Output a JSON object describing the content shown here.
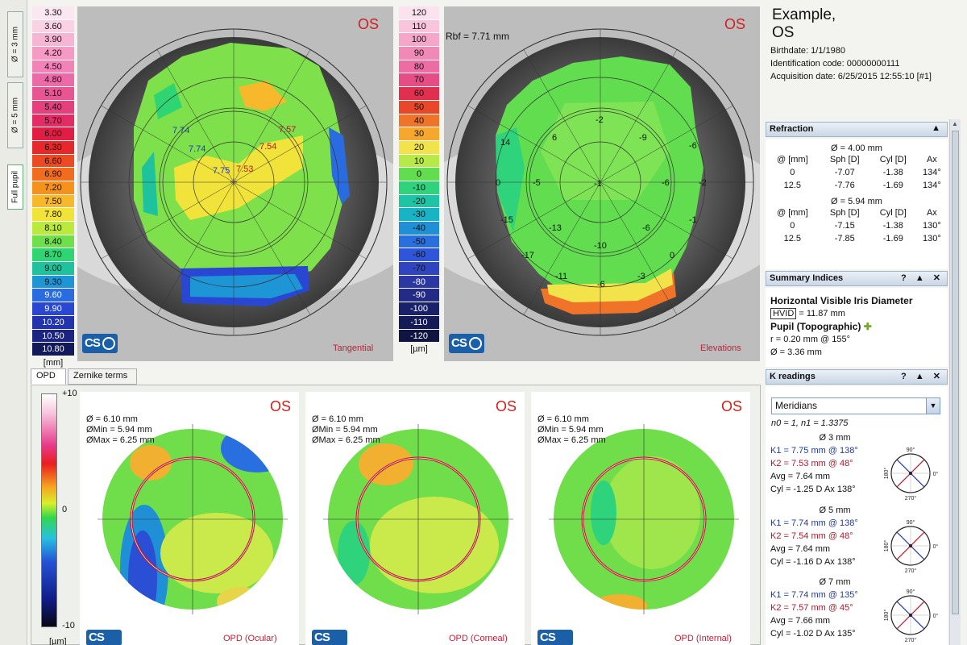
{
  "sidebar_tabs": [
    {
      "label": "Ø = 3 mm"
    },
    {
      "label": "Ø = 5 mm"
    },
    {
      "label": "Full pupil"
    }
  ],
  "tangential_scale": {
    "values": [
      "3.30",
      "3.60",
      "3.90",
      "4.20",
      "4.50",
      "4.80",
      "5.10",
      "5.40",
      "5.70",
      "6.00",
      "6.30",
      "6.60",
      "6.90",
      "7.20",
      "7.50",
      "7.80",
      "8.10",
      "8.40",
      "8.70",
      "9.00",
      "9.30",
      "9.60",
      "9.90",
      "10.20",
      "10.50",
      "10.80"
    ],
    "colors": [
      "#fbe7f1",
      "#f9d2e4",
      "#f5b5d4",
      "#f49ac5",
      "#f183b8",
      "#ed6aa8",
      "#e85593",
      "#e4407d",
      "#e22c63",
      "#e01d45",
      "#e6282a",
      "#ec4a23",
      "#f06d1f",
      "#f5921c",
      "#f7b92b",
      "#f2e33a",
      "#b9ea3c",
      "#6ee04c",
      "#2fd473",
      "#1ec39d",
      "#1e95d5",
      "#2a6ce0",
      "#2a47d3",
      "#2233ad",
      "#1b2581",
      "#121a5c"
    ],
    "unit": "[mm]"
  },
  "elevation_scale": {
    "values": [
      "120",
      "110",
      "100",
      "90",
      "80",
      "70",
      "60",
      "50",
      "40",
      "30",
      "20",
      "10",
      "0",
      "-10",
      "-20",
      "-30",
      "-40",
      "-50",
      "-60",
      "-70",
      "-80",
      "-90",
      "-100",
      "-110",
      "-120"
    ],
    "colors": [
      "#fbe2ee",
      "#f9c5dc",
      "#f5a6ca",
      "#f189b7",
      "#ed6ca4",
      "#e64d85",
      "#e1304f",
      "#e8472a",
      "#f0732a",
      "#f6a72e",
      "#f3e34a",
      "#b7ea48",
      "#62dd4f",
      "#2fd37c",
      "#1fc4a6",
      "#19b3c6",
      "#1f8fd6",
      "#2a6fe0",
      "#2f55db",
      "#3044c2",
      "#2b37a3",
      "#222b86",
      "#1a216b",
      "#151b55",
      "#0f1440"
    ],
    "unit": "[µm]"
  },
  "tangential_map": {
    "eye": "OS",
    "caption": "Tangential",
    "labels": [
      {
        "text": "7.74",
        "color": "blue"
      },
      {
        "text": "7.74",
        "color": "blue"
      },
      {
        "text": "7.75",
        "color": "blue"
      },
      {
        "text": "7.57",
        "color": "red"
      },
      {
        "text": "7.54",
        "color": "red"
      },
      {
        "text": "7.53",
        "color": "red"
      }
    ]
  },
  "elevation_map": {
    "eye": "OS",
    "caption": "Elevations",
    "rbf": "Rbf = 7.71 mm",
    "labels": [
      "-2",
      "-9",
      "6",
      "14",
      "-6",
      "0",
      "-5",
      "-1",
      "-6",
      "-2",
      "-15",
      "-13",
      "-6",
      "-1",
      "-17",
      "-10",
      "0",
      "-11",
      "-6",
      "-3"
    ]
  },
  "logo_text": "CS",
  "bottom_tabs": [
    "OPD",
    "Zernike terms"
  ],
  "opd_scale": {
    "max": "+10",
    "mid": "0",
    "min": "-10",
    "unit": "[µm]"
  },
  "opd_panels": [
    {
      "eye": "OS",
      "diam": "Ø = 6.10 mm",
      "dmin": "ØMin = 5.94 mm",
      "dmax": "ØMax = 6.25 mm",
      "caption": "OPD (Ocular)"
    },
    {
      "eye": "OS",
      "diam": "Ø = 6.10 mm",
      "dmin": "ØMin = 5.94 mm",
      "dmax": "ØMax = 6.25 mm",
      "caption": "OPD (Corneal)"
    },
    {
      "eye": "OS",
      "diam": "Ø = 6.10 mm",
      "dmin": "ØMin = 5.94 mm",
      "dmax": "ØMax = 6.25 mm",
      "caption": "OPD (Internal)"
    }
  ],
  "patient": {
    "name_line1": "Example,",
    "name_line2": "OS",
    "birthdate": "Birthdate: 1/1/1980",
    "id_code": "Identification code: 00000000111",
    "acquisition": "Acquisition date: 6/25/2015 12:55:10 [#1]"
  },
  "refraction": {
    "title": "Refraction",
    "groups": [
      {
        "diam": "Ø = 4.00 mm",
        "headers": [
          "@ [mm]",
          "Sph [D]",
          "Cyl [D]",
          "Ax"
        ],
        "rows": [
          [
            "0",
            "-7.07",
            "-1.38",
            "134°"
          ],
          [
            "12.5",
            "-7.76",
            "-1.69",
            "134°"
          ]
        ]
      },
      {
        "diam": "Ø = 5.94 mm",
        "headers": [
          "@ [mm]",
          "Sph [D]",
          "Cyl [D]",
          "Ax"
        ],
        "rows": [
          [
            "0",
            "-7.15",
            "-1.38",
            "130°"
          ],
          [
            "12.5",
            "-7.85",
            "-1.69",
            "130°"
          ]
        ]
      }
    ]
  },
  "summary": {
    "title": "Summary Indices",
    "hvid_title": "Horizontal Visible Iris Diameter",
    "hvid_label": "HVID",
    "hvid_value": "= 11.87 mm",
    "pupil_title": "Pupil (Topographic)",
    "pupil_r": "r = 0.20 mm @ 155°",
    "pupil_d": "Ø = 3.36 mm"
  },
  "k_readings": {
    "title": "K readings",
    "select_value": "Meridians",
    "indices": "n0 = 1, n1 = 1.3375",
    "groups": [
      {
        "diam": "Ø 3 mm",
        "k1": "K1 = 7.75 mm  @ 138°",
        "k2": "K2 = 7.53 mm  @ 48°",
        "avg": "Avg = 7.64 mm",
        "cyl": "Cyl = -1.25 D Ax 138°"
      },
      {
        "diam": "Ø 5 mm",
        "k1": "K1 = 7.74 mm  @ 138°",
        "k2": "K2 = 7.54 mm  @ 48°",
        "avg": "Avg = 7.64 mm",
        "cyl": "Cyl = -1.16 D Ax 138°"
      },
      {
        "diam": "Ø 7 mm",
        "k1": "K1 = 7.74 mm  @ 135°",
        "k2": "K2 = 7.57 mm  @ 45°",
        "avg": "Avg = 7.66 mm",
        "cyl": "Cyl = -1.02 D Ax 135°"
      }
    ],
    "dial_labels": {
      "top": "90°",
      "bottom": "270°",
      "left": "180°",
      "right": "0°"
    }
  },
  "header_buttons": {
    "help": "?",
    "collapse": "▲",
    "close": "✕"
  }
}
